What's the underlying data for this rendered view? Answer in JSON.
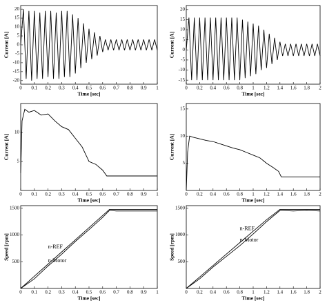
{
  "chart_data": [
    {
      "type": "line",
      "xlabel": "Time [sec]",
      "ylabel": "Current [A]",
      "x": [
        0,
        0.02,
        0.04,
        0.06,
        0.08,
        0.1,
        0.12,
        0.14,
        0.16,
        0.18,
        0.2,
        0.22,
        0.24,
        0.26,
        0.28,
        0.3,
        0.32,
        0.34,
        0.36,
        0.38,
        0.4,
        0.42,
        0.44,
        0.46,
        0.48,
        0.5,
        0.52,
        0.54,
        0.56,
        0.58,
        0.6,
        0.62,
        0.64,
        0.66,
        0.68,
        0.7,
        0.72,
        0.74,
        0.76,
        0.78,
        0.8,
        0.82,
        0.84,
        0.86,
        0.88,
        0.9,
        0.92,
        0.94,
        0.96,
        0.98,
        1
      ],
      "series": [
        {
          "color": "#000000",
          "values": [
            0,
            20,
            -19,
            19,
            -20,
            19,
            -19,
            18,
            -19,
            19,
            -18,
            19,
            -19,
            18,
            -19,
            19,
            -18,
            19,
            -18,
            17,
            -16,
            15,
            -13,
            12,
            -10,
            9,
            -8,
            7,
            -6,
            5,
            -4,
            3,
            -3,
            3,
            -3,
            3,
            -3,
            3,
            -3,
            3,
            -3,
            3,
            -3,
            3,
            -3,
            3,
            -3,
            3,
            -3,
            3,
            -3
          ]
        }
      ],
      "xlim": [
        0,
        1
      ],
      "xticks": [
        0,
        0.1,
        0.2,
        0.3,
        0.4,
        0.5,
        0.6,
        0.7,
        0.8,
        0.9,
        1
      ],
      "ylim": [
        -22,
        22
      ],
      "yticks": [
        -20,
        -15,
        -10,
        -5,
        0,
        5,
        10,
        15,
        20
      ]
    },
    {
      "type": "line",
      "xlabel": "Time [sec]",
      "ylabel": "Current [A]",
      "x": [
        0,
        0.04,
        0.08,
        0.12,
        0.16,
        0.2,
        0.24,
        0.28,
        0.32,
        0.36,
        0.4,
        0.44,
        0.48,
        0.52,
        0.56,
        0.6,
        0.64,
        0.68,
        0.72,
        0.76,
        0.8,
        0.84,
        0.88,
        0.92,
        0.96,
        1,
        1.04,
        1.08,
        1.12,
        1.16,
        1.2,
        1.24,
        1.28,
        1.32,
        1.36,
        1.4,
        1.44,
        1.48,
        1.52,
        1.56,
        1.6,
        1.64,
        1.68,
        1.72,
        1.76,
        1.8,
        1.84,
        1.88,
        1.92,
        1.96,
        2
      ],
      "series": [
        {
          "color": "#000000",
          "values": [
            0,
            16,
            -15,
            16,
            -15,
            16,
            -15,
            16,
            -15,
            16,
            -15,
            16,
            -15,
            16,
            -15,
            16,
            -15,
            16,
            -15,
            16,
            -15,
            15,
            -14,
            14,
            -13,
            13,
            -12,
            12,
            -10,
            10,
            -9,
            8,
            -7,
            6,
            -5,
            4,
            -3,
            3,
            -3,
            3,
            -3,
            3,
            -3,
            3,
            -3,
            3,
            -3,
            3,
            -3,
            3,
            -3
          ]
        }
      ],
      "xlim": [
        0,
        2
      ],
      "xticks": [
        0,
        0.2,
        0.4,
        0.6,
        0.8,
        1,
        1.2,
        1.4,
        1.6,
        1.8,
        2
      ],
      "ylim": [
        -17,
        22
      ],
      "yticks": [
        -15,
        -10,
        -5,
        0,
        5,
        10,
        15,
        20
      ]
    },
    {
      "type": "line",
      "xlabel": "Time [sec]",
      "ylabel": "Current [A]",
      "x": [
        0,
        0.01,
        0.03,
        0.06,
        0.1,
        0.15,
        0.2,
        0.25,
        0.3,
        0.35,
        0.4,
        0.45,
        0.5,
        0.55,
        0.6,
        0.63,
        0.7,
        0.8,
        0.9,
        1
      ],
      "series": [
        {
          "color": "#000000",
          "values": [
            3,
            12,
            14,
            13.5,
            13.8,
            13,
            13.2,
            12,
            11,
            10.5,
            9,
            7.5,
            5,
            4.5,
            3.5,
            2.5,
            2.5,
            2.5,
            2.5,
            2.5
          ]
        }
      ],
      "xlim": [
        0,
        1
      ],
      "xticks": [
        0,
        0.1,
        0.2,
        0.3,
        0.4,
        0.5,
        0.6,
        0.7,
        0.8,
        0.9,
        1
      ],
      "ylim": [
        0,
        15
      ],
      "yticks": [
        5,
        10
      ]
    },
    {
      "type": "line",
      "xlabel": "Time [sec]",
      "ylabel": "Current [A]",
      "x": [
        0,
        0.02,
        0.05,
        0.1,
        0.2,
        0.3,
        0.4,
        0.5,
        0.6,
        0.7,
        0.8,
        0.9,
        1,
        1.1,
        1.2,
        1.3,
        1.38,
        1.42,
        1.6,
        1.8,
        2
      ],
      "series": [
        {
          "color": "#000000",
          "values": [
            0,
            7,
            10,
            9.8,
            9.5,
            9.2,
            9,
            8.6,
            8.2,
            7.8,
            7.5,
            7,
            6.5,
            6,
            5,
            4.2,
            3.5,
            2.5,
            2.5,
            2.5,
            2.5
          ]
        }
      ],
      "xlim": [
        0,
        2
      ],
      "xticks": [
        0,
        0.2,
        0.4,
        0.6,
        0.8,
        1,
        1.2,
        1.4,
        1.6,
        1.8,
        2
      ],
      "ylim": [
        0,
        16
      ],
      "yticks": [
        5,
        10,
        15
      ]
    },
    {
      "type": "line",
      "xlabel": "Time [sec]",
      "ylabel": "Speed [rpm]",
      "x": [
        0,
        0.1,
        0.2,
        0.3,
        0.4,
        0.5,
        0.6,
        0.65,
        0.7,
        0.8,
        0.9,
        1
      ],
      "series": [
        {
          "name": "n-REF",
          "color": "#000000",
          "values": [
            0,
            228,
            455,
            683,
            910,
            1138,
            1365,
            1480,
            1480,
            1480,
            1480,
            1480
          ]
        },
        {
          "name": "n-Motor",
          "color": "#000000",
          "values": [
            0,
            180,
            420,
            640,
            880,
            1100,
            1330,
            1460,
            1450,
            1450,
            1450,
            1450
          ]
        }
      ],
      "xlim": [
        0,
        1
      ],
      "xticks": [
        0,
        0.1,
        0.2,
        0.3,
        0.4,
        0.5,
        0.6,
        0.7,
        0.8,
        0.9,
        1
      ],
      "ylim": [
        0,
        1550
      ],
      "yticks": [
        500,
        1000,
        1500
      ]
    },
    {
      "type": "line",
      "xlabel": "Time [sec]",
      "ylabel": "Speed [rpm]",
      "x": [
        0,
        0.2,
        0.4,
        0.6,
        0.8,
        1,
        1.2,
        1.4,
        1.6,
        1.8,
        2
      ],
      "series": [
        {
          "name": "n-REF",
          "color": "#000000",
          "values": [
            0,
            214,
            429,
            643,
            857,
            1071,
            1286,
            1480,
            1480,
            1480,
            1480
          ]
        },
        {
          "name": "n-Motor",
          "color": "#000000",
          "values": [
            0,
            180,
            400,
            600,
            800,
            1020,
            1250,
            1460,
            1450,
            1460,
            1450
          ]
        }
      ],
      "xlim": [
        0,
        2
      ],
      "xticks": [
        0,
        0.2,
        0.4,
        0.6,
        0.8,
        1,
        1.2,
        1.4,
        1.6,
        1.8,
        2
      ],
      "ylim": [
        0,
        1550
      ],
      "yticks": [
        500,
        1000,
        1500
      ]
    }
  ]
}
